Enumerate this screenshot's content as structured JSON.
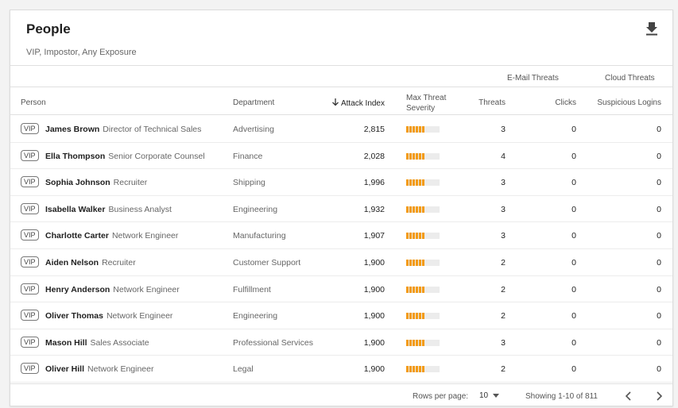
{
  "header": {
    "title": "People",
    "subtitle": "VIP, Impostor, Any Exposure"
  },
  "groups": {
    "email": "E-Mail Threats",
    "cloud": "Cloud Threats"
  },
  "columns": {
    "person": "Person",
    "department": "Department",
    "attack_index": "Attack Index",
    "max_threat_line1": "Max Threat",
    "max_threat_line2": "Severity",
    "threats": "Threats",
    "clicks": "Clicks",
    "logins": "Suspicious Logins"
  },
  "vip_label": "VIP",
  "rows": [
    {
      "name": "James Brown",
      "role": "Director of Technical Sales",
      "department": "Advertising",
      "attack": "2,815",
      "severity": 0.55,
      "threats": "3",
      "clicks": "0",
      "logins": "0"
    },
    {
      "name": "Ella Thompson",
      "role": "Senior Corporate Counsel",
      "department": "Finance",
      "attack": "2,028",
      "severity": 0.55,
      "threats": "4",
      "clicks": "0",
      "logins": "0"
    },
    {
      "name": "Sophia Johnson",
      "role": "Recruiter",
      "department": "Shipping",
      "attack": "1,996",
      "severity": 0.55,
      "threats": "3",
      "clicks": "0",
      "logins": "0"
    },
    {
      "name": "Isabella Walker",
      "role": "Business Analyst",
      "department": "Engineering",
      "attack": "1,932",
      "severity": 0.55,
      "threats": "3",
      "clicks": "0",
      "logins": "0"
    },
    {
      "name": "Charlotte Carter",
      "role": "Network Engineer",
      "department": "Manufacturing",
      "attack": "1,907",
      "severity": 0.55,
      "threats": "3",
      "clicks": "0",
      "logins": "0"
    },
    {
      "name": "Aiden Nelson",
      "role": "Recruiter",
      "department": "Customer Support",
      "attack": "1,900",
      "severity": 0.55,
      "threats": "2",
      "clicks": "0",
      "logins": "0"
    },
    {
      "name": "Henry Anderson",
      "role": "Network Engineer",
      "department": "Fulfillment",
      "attack": "1,900",
      "severity": 0.55,
      "threats": "2",
      "clicks": "0",
      "logins": "0"
    },
    {
      "name": "Oliver Thomas",
      "role": "Network Engineer",
      "department": "Engineering",
      "attack": "1,900",
      "severity": 0.55,
      "threats": "2",
      "clicks": "0",
      "logins": "0"
    },
    {
      "name": "Mason Hill",
      "role": "Sales Associate",
      "department": "Professional Services",
      "attack": "1,900",
      "severity": 0.55,
      "threats": "3",
      "clicks": "0",
      "logins": "0"
    },
    {
      "name": "Oliver Hill",
      "role": "Network Engineer",
      "department": "Legal",
      "attack": "1,900",
      "severity": 0.55,
      "threats": "2",
      "clicks": "0",
      "logins": "0"
    }
  ],
  "footer": {
    "rows_per_page_label": "Rows per page:",
    "rows_per_page_value": "10",
    "showing": "Showing 1-10 of 811"
  },
  "colors": {
    "severity": "#f39b14",
    "severity_track": "#ececec"
  },
  "icons": {
    "download": "download-icon",
    "sort": "arrow-down-icon",
    "prev": "chevron-left-icon",
    "next": "chevron-right-icon"
  }
}
